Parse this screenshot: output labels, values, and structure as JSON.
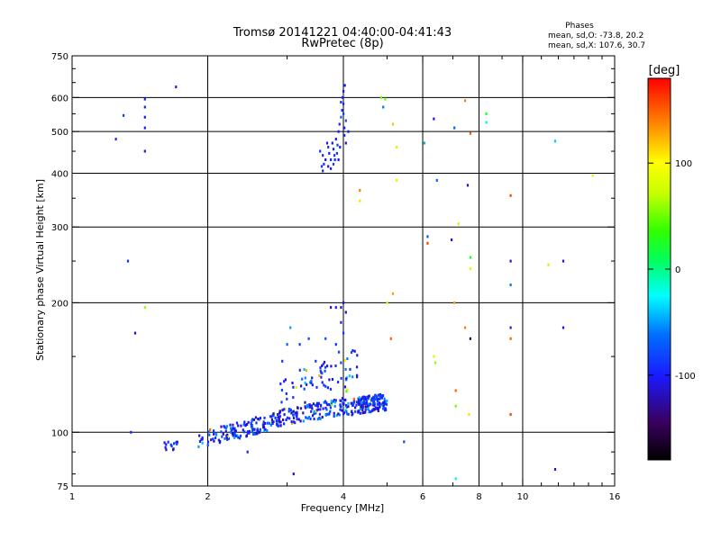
{
  "chart_data": {
    "type": "scatter",
    "title": "Tromsø 20141221 04:40:00-04:41:43",
    "subtitle": "RwPretec (8p)",
    "stats_heading": "Phases",
    "stats_line1": "mean, sd,O: -73.8, 20.2",
    "stats_line2": "mean, sd,X: 107.6, 30.7",
    "xlabel": "Frequency [MHz]",
    "ylabel": "Stationary phase Virtual Height [km]",
    "xscale": "log",
    "yscale": "log",
    "xlim": [
      1,
      16
    ],
    "ylim": [
      75,
      750
    ],
    "xticks": [
      "1",
      "2",
      "4",
      "6",
      "8",
      "10",
      "16"
    ],
    "yticks": [
      "75",
      "100",
      "200",
      "300",
      "400",
      "500",
      "600",
      "750"
    ],
    "grid": true,
    "colorbar": {
      "label": "[deg]",
      "range": [
        -180,
        180
      ],
      "ticks": [
        "100",
        "0",
        "-100"
      ]
    },
    "series": [
      {
        "points": [
          [
            1.25,
            480,
            -95
          ],
          [
            1.3,
            545,
            -85
          ],
          [
            1.33,
            250,
            -90
          ],
          [
            1.45,
            595,
            -100
          ],
          [
            1.45,
            570,
            -95
          ],
          [
            1.45,
            540,
            -110
          ],
          [
            1.45,
            510,
            -100
          ],
          [
            1.45,
            450,
            -115
          ],
          [
            1.7,
            635,
            -105
          ],
          [
            1.45,
            195,
            60
          ],
          [
            1.38,
            170,
            -120
          ],
          [
            3.55,
            450,
            -90
          ],
          [
            3.6,
            440,
            -100
          ],
          [
            3.62,
            420,
            -95
          ],
          [
            3.65,
            430,
            -110
          ],
          [
            3.7,
            460,
            -85
          ],
          [
            3.72,
            445,
            -100
          ],
          [
            3.75,
            430,
            -95
          ],
          [
            3.78,
            470,
            -110
          ],
          [
            3.8,
            455,
            -100
          ],
          [
            3.82,
            440,
            -90
          ],
          [
            3.85,
            480,
            -105
          ],
          [
            3.88,
            465,
            -85
          ],
          [
            3.9,
            500,
            -100
          ],
          [
            3.92,
            520,
            -95
          ],
          [
            3.95,
            540,
            -70
          ],
          [
            3.97,
            560,
            -90
          ],
          [
            3.98,
            600,
            -100
          ],
          [
            4.0,
            620,
            -110
          ],
          [
            4.0,
            580,
            -95
          ],
          [
            4.0,
            550,
            -85
          ],
          [
            4.02,
            510,
            -100
          ],
          [
            4.02,
            490,
            -90
          ],
          [
            4.05,
            470,
            -115
          ],
          [
            3.68,
            470,
            -100
          ],
          [
            3.6,
            405,
            -95
          ],
          [
            3.58,
            415,
            -90
          ],
          [
            3.7,
            415,
            -105
          ],
          [
            3.75,
            410,
            -100
          ],
          [
            3.83,
            430,
            -95
          ],
          [
            3.87,
            445,
            -85
          ],
          [
            3.93,
            460,
            -100
          ],
          [
            4.03,
            640,
            -100
          ],
          [
            3.95,
            585,
            -95
          ],
          [
            4.05,
            530,
            -75
          ],
          [
            4.1,
            500,
            -100
          ],
          [
            3.9,
            430,
            -110
          ],
          [
            3.8,
            420,
            -85
          ],
          [
            4.85,
            600,
            50
          ],
          [
            4.95,
            595,
            50
          ],
          [
            4.9,
            570,
            -60
          ],
          [
            5.15,
            520,
            120
          ],
          [
            5.25,
            460,
            75
          ],
          [
            5.25,
            385,
            80
          ],
          [
            4.35,
            365,
            140
          ],
          [
            4.35,
            345,
            110
          ],
          [
            6.35,
            535,
            -110
          ],
          [
            7.05,
            510,
            -70
          ],
          [
            7.45,
            590,
            140
          ],
          [
            7.65,
            495,
            150
          ],
          [
            8.3,
            550,
            20
          ],
          [
            8.3,
            525,
            -30
          ],
          [
            6.05,
            470,
            -45
          ],
          [
            6.45,
            385,
            -65
          ],
          [
            7.55,
            375,
            -120
          ],
          [
            9.4,
            355,
            160
          ],
          [
            11.8,
            475,
            -40
          ],
          [
            14.3,
            395,
            80
          ],
          [
            6.15,
            285,
            -75
          ],
          [
            6.15,
            275,
            160
          ],
          [
            6.95,
            280,
            -110
          ],
          [
            7.2,
            305,
            70
          ],
          [
            7.65,
            255,
            20
          ],
          [
            7.65,
            240,
            80
          ],
          [
            9.4,
            250,
            -110
          ],
          [
            9.4,
            220,
            -60
          ],
          [
            11.4,
            245,
            70
          ],
          [
            12.3,
            250,
            -110
          ],
          [
            7.05,
            200,
            130
          ],
          [
            5.15,
            210,
            130
          ],
          [
            5.0,
            200,
            75
          ],
          [
            3.05,
            175,
            -50
          ],
          [
            3.0,
            160,
            -70
          ],
          [
            3.2,
            160,
            -90
          ],
          [
            3.35,
            165,
            -80
          ],
          [
            3.65,
            165,
            -75
          ],
          [
            3.75,
            195,
            -110
          ],
          [
            3.85,
            195,
            -100
          ],
          [
            3.95,
            195,
            -120
          ],
          [
            4.0,
            200,
            -110
          ],
          [
            4.05,
            190,
            -120
          ],
          [
            3.95,
            180,
            -100
          ],
          [
            4.0,
            170,
            -90
          ],
          [
            3.85,
            160,
            -95
          ],
          [
            5.1,
            165,
            150
          ],
          [
            6.35,
            150,
            80
          ],
          [
            6.4,
            145,
            60
          ],
          [
            7.45,
            175,
            140
          ],
          [
            7.65,
            165,
            -150
          ],
          [
            9.4,
            175,
            -100
          ],
          [
            9.4,
            165,
            150
          ],
          [
            12.3,
            175,
            -110
          ],
          [
            7.1,
            125,
            150
          ],
          [
            7.1,
            115,
            50
          ],
          [
            7.6,
            110,
            110
          ],
          [
            9.4,
            110,
            160
          ],
          [
            11.8,
            82,
            -110
          ],
          [
            7.1,
            78,
            -30
          ],
          [
            5.45,
            95,
            -80
          ],
          [
            3.1,
            80,
            -120
          ],
          [
            2.45,
            90,
            -100
          ],
          [
            1.35,
            100,
            -95
          ]
        ]
      }
    ],
    "dense_cluster": {
      "description": "",
      "seed": 7
    }
  }
}
